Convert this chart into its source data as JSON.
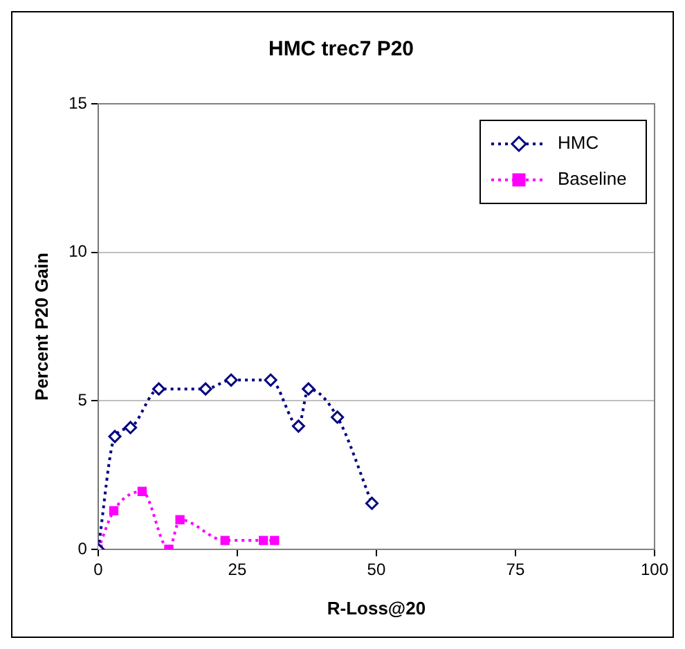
{
  "chart_data": {
    "type": "line",
    "title": "HMC trec7 P20",
    "xlabel": "R-Loss@20",
    "ylabel": "Percent P20 Gain",
    "xlim": [
      0,
      100
    ],
    "xticks": [
      0,
      25,
      50,
      75,
      100
    ],
    "ylim": [
      0,
      15
    ],
    "yticks": [
      0,
      5,
      10,
      15
    ],
    "grid": "y",
    "legend": "top right",
    "line_style": "dotted",
    "series": [
      {
        "name": "HMC",
        "color": "#000080",
        "marker": "diamond",
        "x": [
          0,
          3,
          5.8,
          10.9,
          19.3,
          23.9,
          31,
          36,
          37.8,
          43,
          49.2
        ],
        "values": [
          0,
          3.8,
          4.1,
          5.4,
          5.4,
          5.7,
          5.7,
          4.15,
          5.4,
          4.45,
          1.55
        ]
      },
      {
        "name": "Baseline",
        "color": "#ff00ff",
        "marker": "square",
        "x": [
          0,
          2.8,
          7.9,
          12.7,
          14.7,
          22.8,
          29.7,
          31.7
        ],
        "values": [
          0,
          1.3,
          1.95,
          0,
          1.0,
          0.3,
          0.3,
          0.3
        ]
      }
    ]
  }
}
